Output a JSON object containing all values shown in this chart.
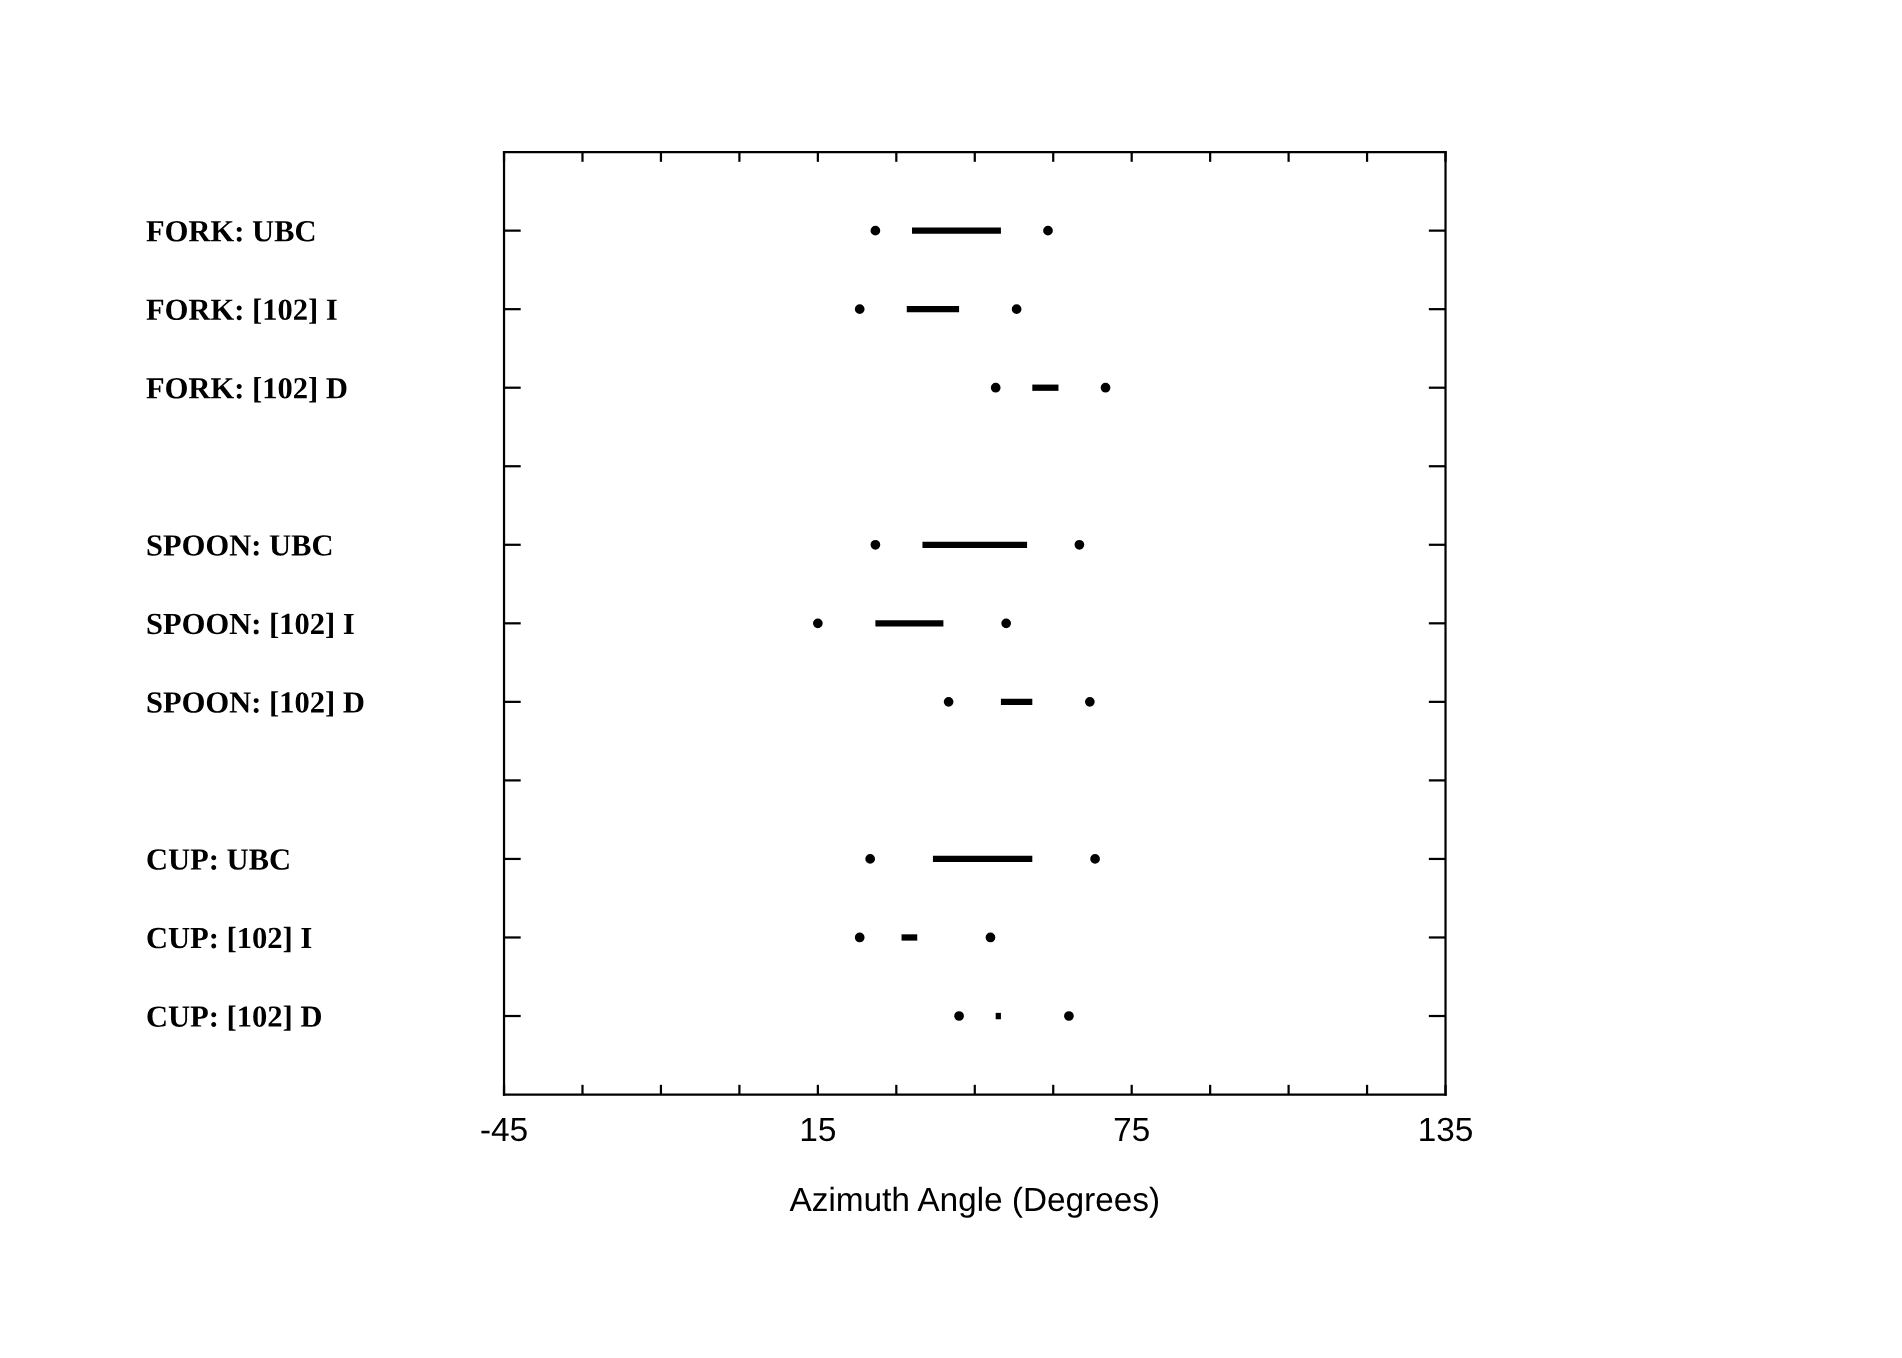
{
  "chart_data": {
    "type": "bar",
    "orientation": "horizontal",
    "xlabel": "Azimuth Angle (Degrees)",
    "categories": [
      "FORK: UBC",
      "FORK: [102] I",
      "FORK: [102] D",
      null,
      "SPOON: UBC",
      "SPOON: [102] I",
      "SPOON: [102] D",
      null,
      "CUP: UBC",
      "CUP: [102] I",
      "CUP: [102] D"
    ],
    "series": [
      {
        "color": "#000000",
        "base": [
          33,
          32,
          56,
          null,
          35,
          26,
          50,
          null,
          37,
          31,
          49
        ],
        "values": [
          17,
          10,
          5,
          null,
          20,
          13,
          6,
          null,
          19,
          3,
          1
        ]
      },
      {
        "type": "scatter",
        "color": "#000000",
        "values": [
          26,
          23,
          49,
          null,
          26,
          15,
          40,
          null,
          25,
          23,
          42
        ]
      },
      {
        "type": "scatter",
        "color": "#000000",
        "values": [
          59,
          53,
          70,
          null,
          65,
          51,
          67,
          null,
          68,
          48,
          63
        ]
      }
    ],
    "marker": "circle",
    "xlim": [
      -45,
      135
    ],
    "xticks": [
      -45,
      {
        "value": -30,
        "label": null
      },
      {
        "value": -15,
        "label": null
      },
      {
        "value": 0,
        "label": null
      },
      15,
      {
        "value": 30,
        "label": null
      },
      {
        "value": 45,
        "label": null
      },
      {
        "value": 60,
        "label": null
      },
      75,
      {
        "value": 90,
        "label": null
      },
      {
        "value": 105,
        "label": null
      },
      {
        "value": 120,
        "label": null
      },
      135
    ],
    "grid": false
  }
}
